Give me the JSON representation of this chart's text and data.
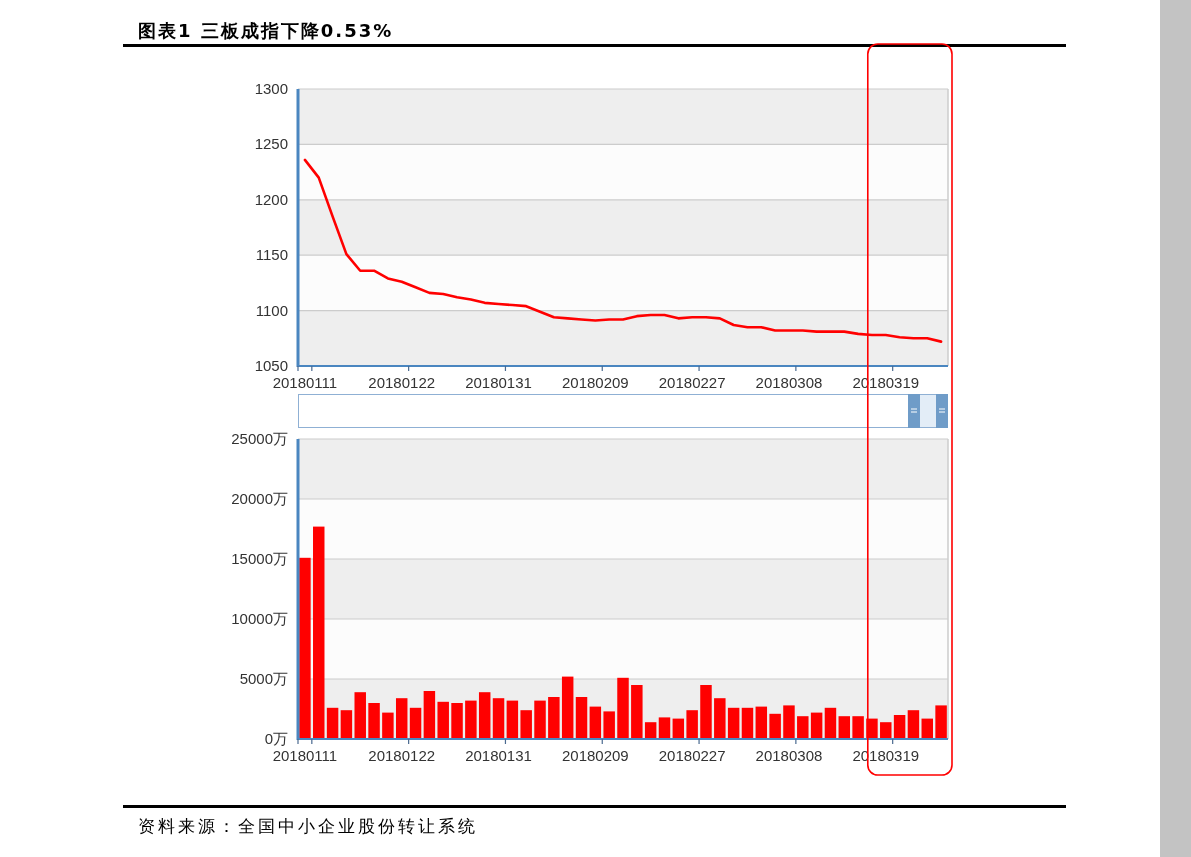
{
  "chart_data": [
    {
      "type": "line",
      "title": "图表1 三板成指下降0.53%",
      "categories": [
        "20180111",
        null,
        null,
        null,
        null,
        null,
        null,
        "20180122",
        null,
        null,
        null,
        null,
        null,
        null,
        "20180131",
        null,
        null,
        null,
        null,
        null,
        null,
        "20180209",
        null,
        null,
        null,
        null,
        null,
        null,
        "20180227",
        null,
        null,
        null,
        null,
        null,
        null,
        "20180308",
        null,
        null,
        null,
        null,
        null,
        null,
        "20180319",
        null,
        null,
        null,
        null
      ],
      "values": [
        1236,
        1220,
        1185,
        1151,
        1136,
        1136,
        1129,
        1126,
        1121,
        1116,
        1115,
        1112,
        1110,
        1107,
        1106,
        1105,
        1104,
        1099,
        1094,
        1093,
        1092,
        1091,
        1092,
        1092,
        1095,
        1096,
        1096,
        1093,
        1094,
        1094,
        1093,
        1087,
        1085,
        1085,
        1082,
        1082,
        1082,
        1081,
        1081,
        1081,
        1079,
        1078,
        1078,
        1076,
        1075,
        1075,
        1072
      ],
      "color": "#ff0000",
      "ylim": [
        1050,
        1300
      ],
      "yticks": [
        1050,
        1100,
        1150,
        1200,
        1250,
        1300
      ],
      "grid": "y"
    },
    {
      "type": "bar",
      "categories": [
        "20180111",
        null,
        null,
        null,
        null,
        null,
        null,
        "20180122",
        null,
        null,
        null,
        null,
        null,
        null,
        "20180131",
        null,
        null,
        null,
        null,
        null,
        null,
        "20180209",
        null,
        null,
        null,
        null,
        null,
        null,
        "20180227",
        null,
        null,
        null,
        null,
        null,
        null,
        "20180308",
        null,
        null,
        null,
        null,
        null,
        null,
        "20180319",
        null,
        null,
        null,
        null
      ],
      "values": [
        15100,
        17700,
        2600,
        2400,
        3900,
        3000,
        2200,
        3400,
        2600,
        4000,
        3100,
        3000,
        3200,
        3900,
        3400,
        3200,
        2400,
        3200,
        3500,
        5200,
        3500,
        2700,
        2300,
        5100,
        4500,
        1400,
        1800,
        1700,
        2400,
        4500,
        3400,
        2600,
        2600,
        2700,
        2100,
        2800,
        1900,
        2200,
        2600,
        1900,
        1900,
        1700,
        1400,
        2000,
        2400,
        1700,
        2800
      ],
      "color": "#ff0000",
      "ylim": [
        0,
        25000
      ],
      "yticks": [
        {
          "value": 0,
          "label": "0万"
        },
        {
          "value": 5000,
          "label": "5000万"
        },
        {
          "value": 10000,
          "label": "10000万"
        },
        {
          "value": 15000,
          "label": "15000万"
        },
        {
          "value": 20000,
          "label": "20000万"
        },
        {
          "value": 25000,
          "label": "25000万"
        }
      ],
      "grid": "y",
      "annotations": [
        "资料来源：全国中小企业股份转让系统"
      ]
    }
  ]
}
